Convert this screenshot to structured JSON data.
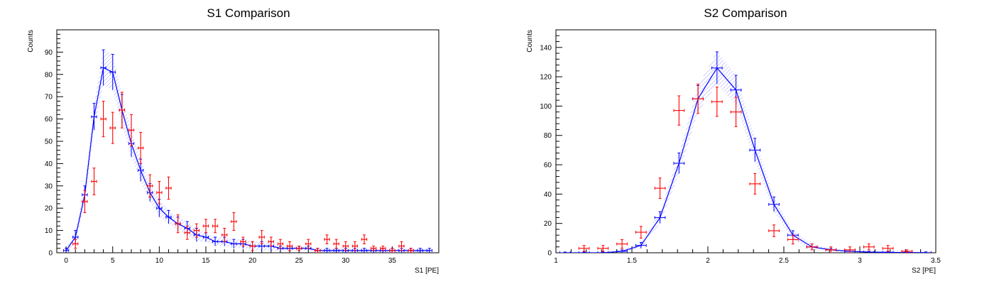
{
  "chart_data": [
    {
      "type": "line",
      "title": "S1 Comparison",
      "xlabel": "S1 [PE]",
      "ylabel": "Counts",
      "xlim": [
        -1,
        40
      ],
      "ylim": [
        0,
        100
      ],
      "xticks": [
        0,
        5,
        10,
        15,
        20,
        25,
        30,
        35
      ],
      "yticks": [
        0,
        10,
        20,
        30,
        40,
        50,
        60,
        70,
        80,
        90
      ],
      "grid": false,
      "series": [
        {
          "style": "simulation-line-with-band",
          "color": "#0000ff",
          "x": [
            0,
            1,
            2,
            3,
            4,
            5,
            6,
            7,
            8,
            9,
            10,
            11,
            12,
            13,
            14,
            15,
            16,
            17,
            18,
            19,
            20,
            21,
            22,
            23,
            24,
            25,
            26,
            27,
            28,
            29,
            30,
            31,
            32,
            33,
            34,
            35,
            36,
            37,
            38,
            39
          ],
          "y": [
            1,
            7,
            26,
            61,
            83,
            81,
            64,
            49,
            37,
            27,
            20,
            16,
            13,
            11,
            8,
            7,
            5,
            5,
            4,
            4,
            3,
            3,
            3,
            2,
            2,
            2,
            2,
            1,
            1,
            1,
            1,
            1,
            1,
            1,
            1,
            1,
            1,
            1,
            1,
            1
          ],
          "band": [
            1,
            3,
            4,
            6,
            8,
            8,
            7,
            6,
            5,
            4,
            4,
            3,
            3,
            3,
            3,
            2,
            2,
            2,
            2,
            2,
            2,
            2,
            2,
            1,
            1,
            1,
            1,
            1,
            1,
            1,
            1,
            1,
            1,
            1,
            1,
            1,
            1,
            1,
            1,
            1
          ]
        },
        {
          "style": "data-points",
          "color": "#ff0000",
          "x": [
            1,
            2,
            3,
            4,
            5,
            6,
            7,
            8,
            9,
            10,
            11,
            12,
            13,
            14,
            15,
            16,
            17,
            18,
            19,
            20,
            21,
            22,
            23,
            24,
            25,
            26,
            27,
            28,
            29,
            30,
            31,
            32,
            33,
            34,
            35,
            36,
            37
          ],
          "y": [
            4,
            23,
            32,
            60,
            56,
            64,
            55,
            47,
            30,
            27,
            29,
            13,
            9,
            10,
            12,
            12,
            8,
            14,
            5,
            3,
            7,
            5,
            4,
            3,
            2,
            4,
            1,
            6,
            4,
            3,
            3,
            6,
            2,
            2,
            1,
            3,
            1
          ],
          "yerr": [
            2,
            5,
            6,
            8,
            7,
            8,
            7,
            7,
            5,
            5,
            5,
            4,
            3,
            3,
            3,
            3,
            3,
            4,
            2,
            2,
            3,
            2,
            2,
            2,
            1,
            2,
            1,
            2,
            2,
            2,
            2,
            2,
            1,
            1,
            1,
            2,
            1
          ]
        }
      ]
    },
    {
      "type": "line",
      "title": "S2 Comparison",
      "xlabel": "S2 [PE]",
      "ylabel": "Counts",
      "xlim": [
        1,
        3.5
      ],
      "ylim": [
        0,
        152
      ],
      "xticks": [
        1,
        1.5,
        2,
        2.5,
        3,
        3.5
      ],
      "yticks": [
        0,
        20,
        40,
        60,
        80,
        100,
        120,
        140
      ],
      "grid": false,
      "series": [
        {
          "style": "simulation-line-with-band",
          "color": "#0000ff",
          "x": [
            1.06,
            1.185,
            1.31,
            1.435,
            1.56,
            1.685,
            1.81,
            1.935,
            2.06,
            2.185,
            2.31,
            2.435,
            2.56,
            2.685,
            2.81,
            2.935,
            3.06,
            3.185,
            3.31,
            3.435
          ],
          "y": [
            0,
            0,
            0,
            1,
            5,
            24,
            61,
            105,
            126,
            111,
            70,
            33,
            12,
            4,
            2,
            1,
            0.5,
            0.3,
            0.2,
            0.1
          ],
          "band": [
            0.5,
            0.5,
            0.5,
            1,
            2,
            4,
            7,
            9,
            11,
            10,
            8,
            5,
            3,
            2,
            1,
            1,
            0.5,
            0.5,
            0.5,
            0.5
          ]
        },
        {
          "style": "data-points",
          "color": "#ff0000",
          "x": [
            1.185,
            1.31,
            1.435,
            1.56,
            1.685,
            1.81,
            1.935,
            2.06,
            2.185,
            2.31,
            2.435,
            2.56,
            2.685,
            2.81,
            2.935,
            3.06,
            3.185,
            3.31
          ],
          "y": [
            3,
            3,
            6,
            14,
            44,
            97,
            105,
            103,
            96,
            47,
            15,
            9,
            4,
            2,
            2,
            4,
            3,
            1
          ],
          "yerr": [
            2,
            2,
            3,
            4,
            7,
            10,
            10,
            10,
            10,
            7,
            4,
            3,
            2,
            2,
            2,
            2,
            2,
            1
          ]
        }
      ]
    }
  ]
}
